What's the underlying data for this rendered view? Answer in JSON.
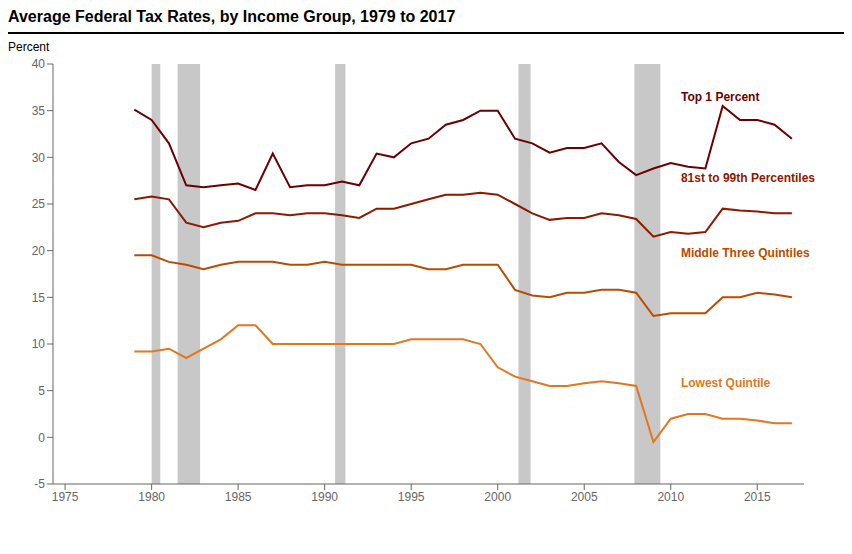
{
  "chart_data": {
    "type": "line",
    "title": "Average Federal Tax Rates, by Income Group, 1979 to 2017",
    "ylabel": "Percent",
    "x": [
      1979,
      1980,
      1981,
      1982,
      1983,
      1984,
      1985,
      1986,
      1987,
      1988,
      1989,
      1990,
      1991,
      1992,
      1993,
      1994,
      1995,
      1996,
      1997,
      1998,
      1999,
      2000,
      2001,
      2002,
      2003,
      2004,
      2005,
      2006,
      2007,
      2008,
      2009,
      2010,
      2011,
      2012,
      2013,
      2014,
      2015,
      2016,
      2017
    ],
    "xlim": [
      1974.3,
      2017.7
    ],
    "xticks": [
      1975,
      1980,
      1985,
      1990,
      1995,
      2000,
      2005,
      2010,
      2015
    ],
    "ylim": [
      -5,
      40
    ],
    "yticks": [
      -5,
      0,
      5,
      10,
      15,
      20,
      25,
      30,
      35,
      40
    ],
    "grid": false,
    "series": [
      {
        "name": "Top 1 Percent",
        "color": "#6b0000",
        "values": [
          35.1,
          34.0,
          31.5,
          27.0,
          26.8,
          27.0,
          27.2,
          26.5,
          30.4,
          26.8,
          27.0,
          27.0,
          27.4,
          27.0,
          30.4,
          30.0,
          31.5,
          32.0,
          33.5,
          34.0,
          35.0,
          35.0,
          32.0,
          31.5,
          30.5,
          31.0,
          31.0,
          31.5,
          29.5,
          28.1,
          28.8,
          29.4,
          29.0,
          28.8,
          35.5,
          34.0,
          34.0,
          33.5,
          32.0
        ]
      },
      {
        "name": "81st to 99th Percentiles",
        "color": "#8b1a00",
        "values": [
          25.5,
          25.8,
          25.5,
          23.0,
          22.5,
          23.0,
          23.2,
          24.0,
          24.0,
          23.8,
          24.0,
          24.0,
          23.8,
          23.5,
          24.5,
          24.5,
          25.0,
          25.5,
          26.0,
          26.0,
          26.2,
          26.0,
          25.0,
          24.0,
          23.3,
          23.5,
          23.5,
          24.0,
          23.8,
          23.4,
          21.5,
          22.0,
          21.8,
          22.0,
          24.5,
          24.3,
          24.2,
          24.0,
          24.0
        ]
      },
      {
        "name": "Middle Three Quintiles",
        "color": "#b84c00",
        "values": [
          19.5,
          19.5,
          18.8,
          18.5,
          18.0,
          18.5,
          18.8,
          18.8,
          18.8,
          18.5,
          18.5,
          18.8,
          18.5,
          18.5,
          18.5,
          18.5,
          18.5,
          18.0,
          18.0,
          18.5,
          18.5,
          18.5,
          15.8,
          15.2,
          15.0,
          15.5,
          15.5,
          15.8,
          15.8,
          15.5,
          13.0,
          13.3,
          13.3,
          13.3,
          15.0,
          15.0,
          15.5,
          15.3,
          15.0
        ]
      },
      {
        "name": "Lowest Quintile",
        "color": "#e07820",
        "values": [
          9.2,
          9.2,
          9.5,
          8.5,
          9.5,
          10.5,
          12.0,
          12.0,
          10.0,
          10.0,
          10.0,
          10.0,
          10.0,
          10.0,
          10.0,
          10.0,
          10.5,
          10.5,
          10.5,
          10.5,
          10.0,
          7.5,
          6.5,
          6.0,
          5.5,
          5.5,
          5.8,
          6.0,
          5.8,
          5.5,
          -0.5,
          2.0,
          2.5,
          2.5,
          2.0,
          2.0,
          1.8,
          1.5,
          1.5
        ]
      }
    ],
    "recession_bands": [
      [
        1980.0,
        1980.5
      ],
      [
        1981.5,
        1982.8
      ],
      [
        1990.6,
        1991.2
      ],
      [
        2001.2,
        2001.9
      ],
      [
        2007.9,
        2009.4
      ]
    ],
    "annotations": [
      {
        "text": "Top 1 Percent",
        "x": 2010.3,
        "y": 36.5,
        "color": "#6b0000"
      },
      {
        "text": "81st to 99th Percentiles",
        "x": 2010.3,
        "y": 27.8,
        "color": "#8b1a00"
      },
      {
        "text": "Middle Three Quintiles",
        "x": 2010.3,
        "y": 19.8,
        "color": "#b84c00"
      },
      {
        "text": "Lowest Quintile",
        "x": 2010.3,
        "y": 5.8,
        "color": "#e07820"
      }
    ]
  }
}
